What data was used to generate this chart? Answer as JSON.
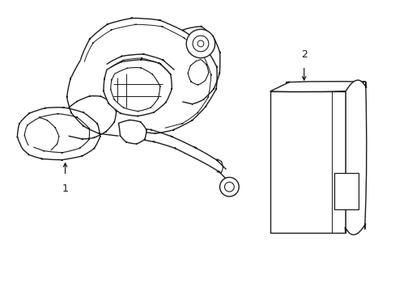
{
  "background_color": "#ffffff",
  "line_color": "#1a1a1a",
  "line_width": 1.0,
  "fig_width": 4.89,
  "fig_height": 3.6,
  "dpi": 100,
  "label1_text": "1",
  "label2_text": "2"
}
